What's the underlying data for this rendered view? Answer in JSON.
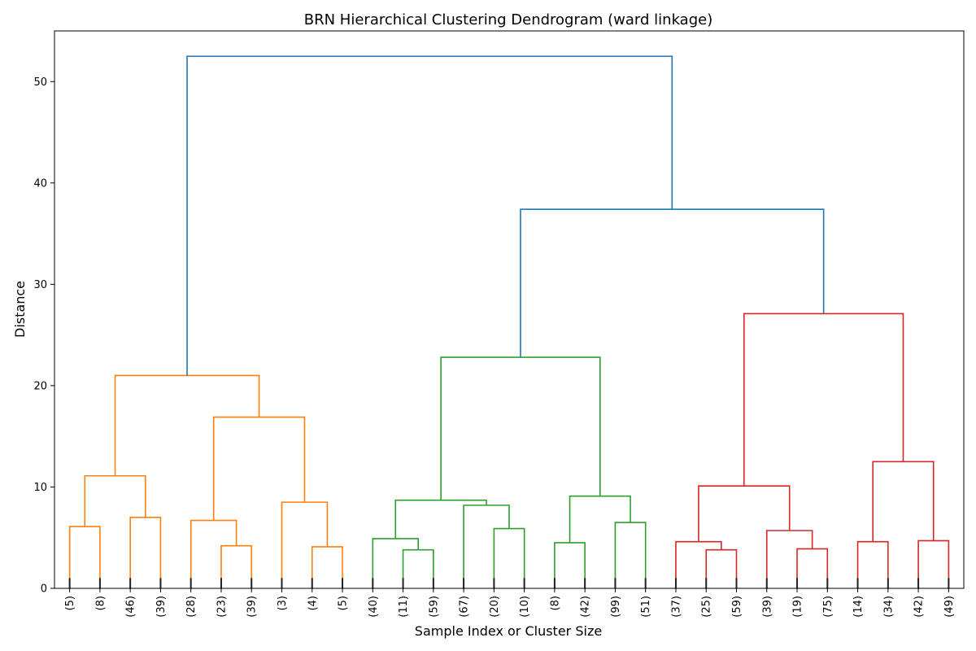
{
  "chart_data": {
    "type": "dendrogram",
    "title": "BRN Hierarchical Clustering Dendrogram (ward linkage)",
    "xlabel": "Sample Index or Cluster Size",
    "ylabel": "Distance",
    "ylim": [
      0,
      55
    ],
    "y_ticks": [
      0,
      10,
      20,
      30,
      40,
      50
    ],
    "grid": false,
    "leaves": [
      "(5)",
      "(8)",
      "(46)",
      "(39)",
      "(28)",
      "(23)",
      "(39)",
      "(3)",
      "(4)",
      "(5)",
      "(40)",
      "(11)",
      "(59)",
      "(67)",
      "(20)",
      "(10)",
      "(8)",
      "(42)",
      "(99)",
      "(51)",
      "(37)",
      "(25)",
      "(59)",
      "(39)",
      "(19)",
      "(75)",
      "(14)",
      "(34)",
      "(42)",
      "(49)"
    ],
    "colors": {
      "above_threshold": "#1f77b4",
      "cluster_1": "#ff7f0e",
      "cluster_2": "#2ca02c",
      "cluster_3": "#d62728"
    },
    "merges": [
      {
        "left": "L0",
        "right": "L1",
        "height": 6.1,
        "color": "cluster_1"
      },
      {
        "left": "L2",
        "right": "L3",
        "height": 7.0,
        "color": "cluster_1"
      },
      {
        "left": "M0",
        "right": "M1",
        "height": 11.1,
        "color": "cluster_1"
      },
      {
        "left": "L5",
        "right": "L6",
        "height": 4.2,
        "color": "cluster_1"
      },
      {
        "left": "L4",
        "right": "M3",
        "height": 6.7,
        "color": "cluster_1"
      },
      {
        "left": "L8",
        "right": "L9",
        "height": 4.1,
        "color": "cluster_1"
      },
      {
        "left": "L7",
        "right": "M5",
        "height": 8.5,
        "color": "cluster_1"
      },
      {
        "left": "M4",
        "right": "M6",
        "height": 16.9,
        "color": "cluster_1"
      },
      {
        "left": "M2",
        "right": "M7",
        "height": 21.0,
        "color": "cluster_1"
      },
      {
        "left": "L11",
        "right": "L12",
        "height": 3.8,
        "color": "cluster_2"
      },
      {
        "left": "L10",
        "right": "M9",
        "height": 4.9,
        "color": "cluster_2"
      },
      {
        "left": "L14",
        "right": "L15",
        "height": 5.9,
        "color": "cluster_2"
      },
      {
        "left": "L13",
        "right": "M11",
        "height": 8.2,
        "color": "cluster_2"
      },
      {
        "left": "M10",
        "right": "M12",
        "height": 8.7,
        "color": "cluster_2"
      },
      {
        "left": "L16",
        "right": "L17",
        "height": 4.5,
        "color": "cluster_2"
      },
      {
        "left": "L18",
        "right": "L19",
        "height": 6.5,
        "color": "cluster_2"
      },
      {
        "left": "M14",
        "right": "M15",
        "height": 9.1,
        "color": "cluster_2"
      },
      {
        "left": "M13",
        "right": "M16",
        "height": 22.8,
        "color": "cluster_2"
      },
      {
        "left": "L21",
        "right": "L22",
        "height": 3.8,
        "color": "cluster_3"
      },
      {
        "left": "L20",
        "right": "M18",
        "height": 4.6,
        "color": "cluster_3"
      },
      {
        "left": "L24",
        "right": "L25",
        "height": 3.9,
        "color": "cluster_3"
      },
      {
        "left": "L23",
        "right": "M20",
        "height": 5.7,
        "color": "cluster_3"
      },
      {
        "left": "M19",
        "right": "M21",
        "height": 10.1,
        "color": "cluster_3"
      },
      {
        "left": "L26",
        "right": "L27",
        "height": 4.6,
        "color": "cluster_3"
      },
      {
        "left": "L28",
        "right": "L29",
        "height": 4.7,
        "color": "cluster_3"
      },
      {
        "left": "M23",
        "right": "M24",
        "height": 12.5,
        "color": "cluster_3"
      },
      {
        "left": "M22",
        "right": "M25",
        "height": 27.1,
        "color": "cluster_3"
      },
      {
        "left": "M17",
        "right": "M26",
        "height": 37.4,
        "color": "above_threshold"
      },
      {
        "left": "M8",
        "right": "M27",
        "height": 52.5,
        "color": "above_threshold"
      }
    ]
  }
}
